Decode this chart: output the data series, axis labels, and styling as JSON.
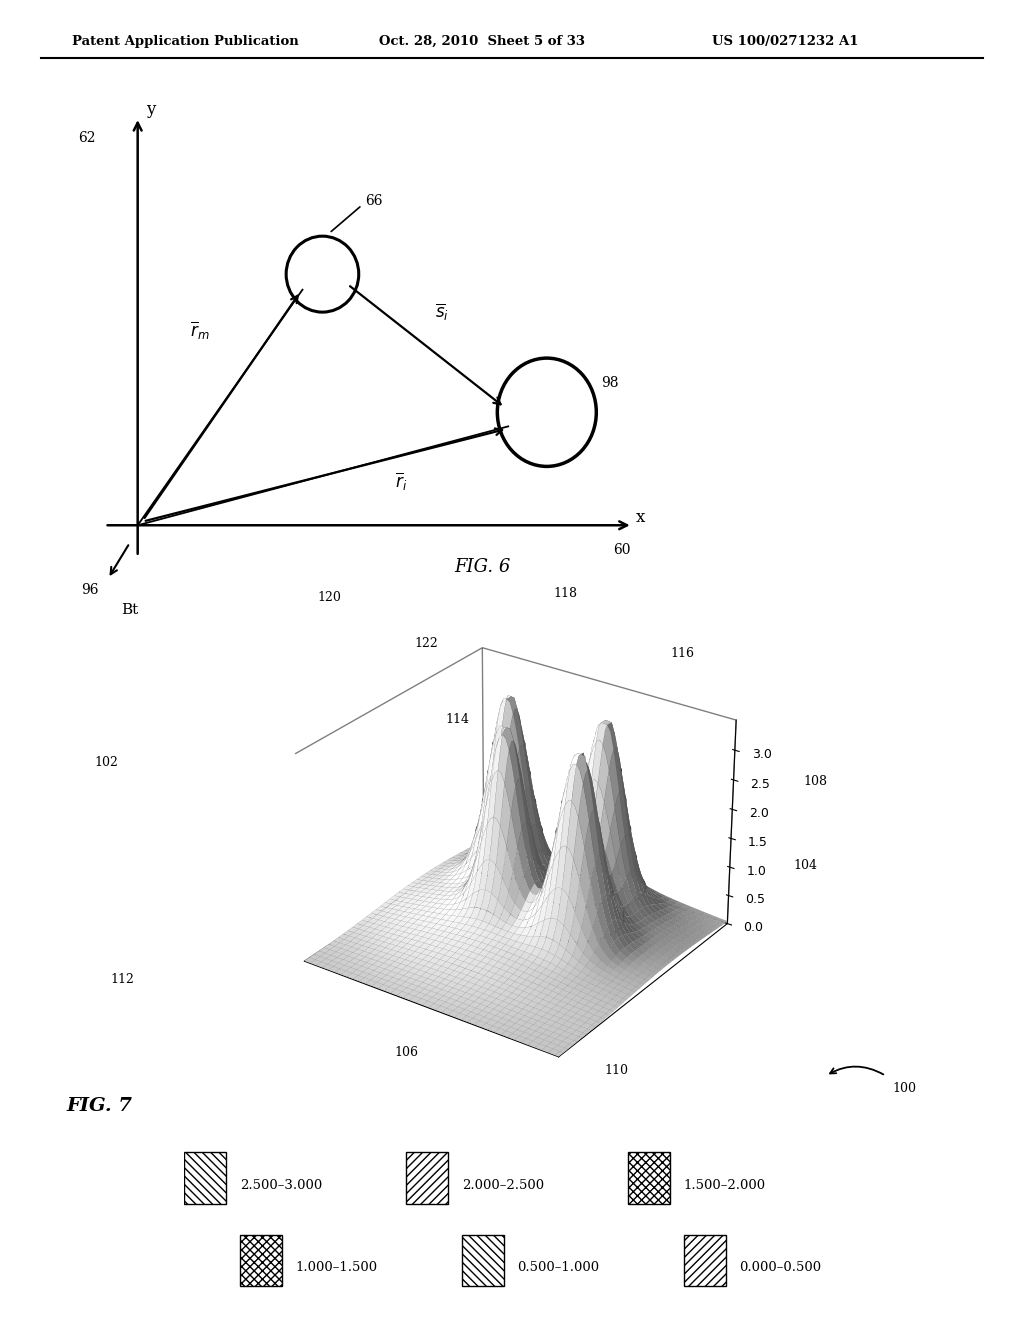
{
  "header_left": "Patent Application Publication",
  "header_center": "Oct. 28, 2010  Sheet 5 of 33",
  "header_right": "US 100/0271232 A1",
  "background": "#ffffff",
  "fig6": {
    "fig_label": "FIG. 6",
    "label_60": "60",
    "label_62": "62",
    "label_66": "66",
    "label_96": "96",
    "label_98": "98"
  },
  "fig7": {
    "fig_label": "FIG. 7",
    "bt_label": "Bt",
    "yticks": [
      0.0,
      0.5,
      1.0,
      1.5,
      2.0,
      2.5,
      3.0
    ],
    "label_100": "100",
    "label_102": "102",
    "label_104": "104",
    "label_106": "106",
    "label_108": "108",
    "label_110": "110",
    "label_112": "112",
    "label_114": "114",
    "label_116": "116",
    "label_118": "118",
    "label_120": "120",
    "label_122": "122"
  },
  "legend": [
    {
      "label": "2.500–3.000"
    },
    {
      "label": "2.000–2.500"
    },
    {
      "label": "1.500–2.000"
    },
    {
      "label": "1.000–1.500"
    },
    {
      "label": "0.500–1.000"
    },
    {
      "label": "0.000–0.500"
    }
  ]
}
